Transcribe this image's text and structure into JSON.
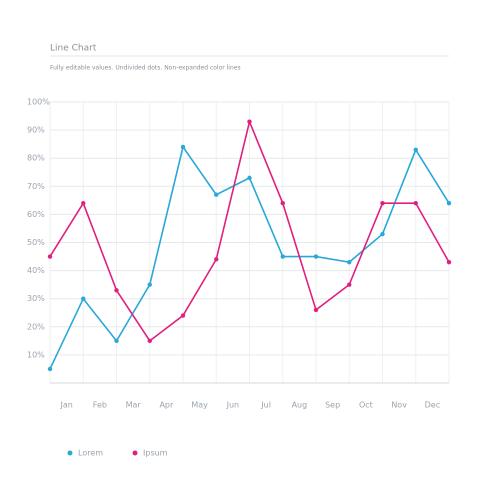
{
  "chart_data": {
    "type": "line",
    "title": "Line Chart",
    "subtitle": "Fully editable values. Undivided dots. Non-expanded color lines",
    "categories": [
      "Jan",
      "Feb",
      "Mar",
      "Apr",
      "May",
      "Jun",
      "Jul",
      "Aug",
      "Sep",
      "Oct",
      "Nov",
      "Dec",
      null
    ],
    "series": [
      {
        "name": "Lorem",
        "color": "#29a8d8",
        "values": [
          5,
          30,
          15,
          35,
          84,
          67,
          73,
          45,
          45,
          43,
          53,
          83,
          64
        ]
      },
      {
        "name": "Ipsum",
        "color": "#e0207f",
        "values": [
          45,
          64,
          33,
          15,
          24,
          44,
          93,
          64,
          26,
          35,
          64,
          64,
          43
        ]
      }
    ],
    "ylim": [
      0,
      100
    ],
    "yticks": [
      {
        "value": 10,
        "label": "10%"
      },
      {
        "value": 20,
        "label": "20%"
      },
      {
        "value": 30,
        "label": "30%"
      },
      {
        "value": 40,
        "label": "40%"
      },
      {
        "value": 50,
        "label": "50%"
      },
      {
        "value": 60,
        "label": "60%"
      },
      {
        "value": 70,
        "label": "70%"
      },
      {
        "value": 80,
        "label": "80%"
      },
      {
        "value": 90,
        "label": "90%"
      },
      {
        "value": 100,
        "label": "100%"
      }
    ],
    "grid": true,
    "legend": "bottom"
  }
}
